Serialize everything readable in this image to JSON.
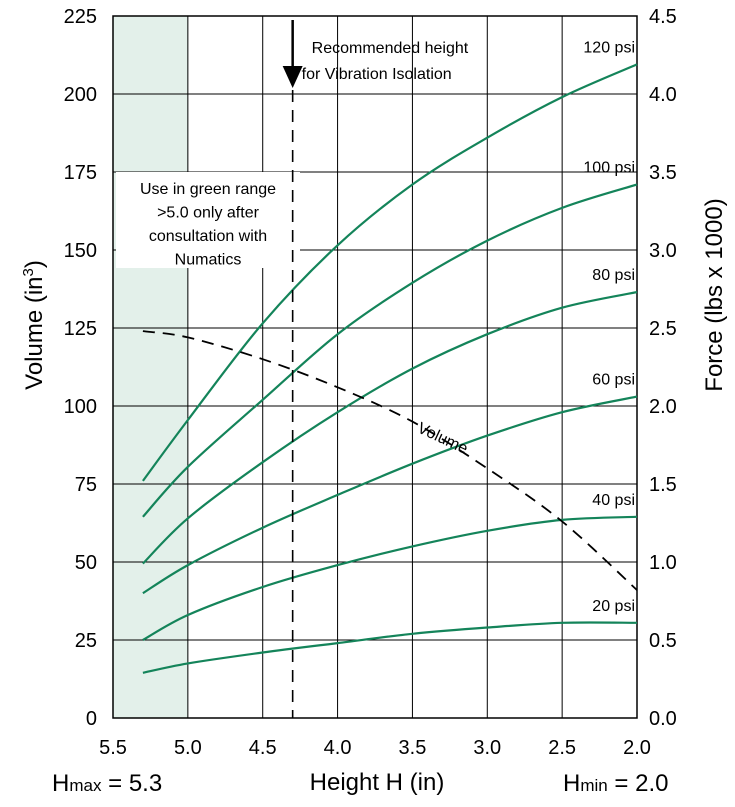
{
  "chart_data": {
    "type": "line",
    "x_axis": {
      "label": "Height H (in)",
      "reversed": true,
      "lim": [
        5.5,
        2.0
      ],
      "ticks": [
        "5.5",
        "5.0",
        "4.5",
        "4.0",
        "3.5",
        "3.0",
        "2.5",
        "2.0"
      ]
    },
    "y_left": {
      "label": "Volume (in",
      "label_sup": "3",
      "label_end": ")",
      "lim": [
        0,
        225
      ],
      "ticks": [
        "0",
        "25",
        "50",
        "75",
        "100",
        "125",
        "150",
        "175",
        "200",
        "225"
      ]
    },
    "y_right": {
      "label": "Force (lbs x 1000)",
      "lim": [
        0.0,
        4.5
      ],
      "ticks": [
        "0.0",
        "0.5",
        "1.0",
        "1.5",
        "2.0",
        "2.5",
        "3.0",
        "3.5",
        "4.0",
        "4.5"
      ]
    },
    "grid": true,
    "shaded_region": {
      "x": [
        5.5,
        5.0
      ],
      "color": "#e3f0ea"
    },
    "recommended_line": {
      "x": 4.3,
      "label_line1": "Recommended height",
      "label_line2": "for Vibration Isolation"
    },
    "note": {
      "lines": [
        "Use in green range",
        ">5.0 only after",
        "consultation with",
        "Numatics"
      ]
    },
    "force_series": [
      {
        "name": "120 psi",
        "x": [
          5.3,
          5.0,
          4.5,
          4.0,
          3.5,
          3.0,
          2.5,
          2.0
        ],
        "y": [
          1.52,
          1.91,
          2.53,
          3.03,
          3.42,
          3.72,
          3.98,
          4.19
        ]
      },
      {
        "name": "100 psi",
        "x": [
          5.3,
          5.0,
          4.5,
          4.0,
          3.5,
          3.0,
          2.5,
          2.0
        ],
        "y": [
          1.29,
          1.61,
          2.04,
          2.46,
          2.79,
          3.06,
          3.27,
          3.42
        ]
      },
      {
        "name": "80 psi",
        "x": [
          5.3,
          5.0,
          4.5,
          4.0,
          3.5,
          3.0,
          2.5,
          2.0
        ],
        "y": [
          0.99,
          1.28,
          1.64,
          1.96,
          2.24,
          2.46,
          2.63,
          2.73
        ]
      },
      {
        "name": "60 psi",
        "x": [
          5.3,
          5.0,
          4.5,
          4.0,
          3.5,
          3.0,
          2.5,
          2.0
        ],
        "y": [
          0.8,
          0.98,
          1.22,
          1.43,
          1.63,
          1.81,
          1.96,
          2.06
        ]
      },
      {
        "name": "40 psi",
        "x": [
          5.3,
          5.0,
          4.5,
          4.0,
          3.5,
          3.0,
          2.5,
          2.0
        ],
        "y": [
          0.5,
          0.66,
          0.84,
          0.98,
          1.1,
          1.2,
          1.27,
          1.29
        ]
      },
      {
        "name": "20 psi",
        "x": [
          5.3,
          5.0,
          4.5,
          4.0,
          3.5,
          3.0,
          2.5,
          2.0
        ],
        "y": [
          0.29,
          0.35,
          0.42,
          0.48,
          0.54,
          0.58,
          0.61,
          0.61
        ]
      }
    ],
    "volume_series": {
      "name": "Volume",
      "x": [
        5.3,
        5.0,
        4.5,
        4.0,
        3.5,
        3.0,
        2.5,
        2.0
      ],
      "y": [
        124,
        122,
        115,
        106,
        95,
        80,
        63,
        41
      ]
    },
    "colors": {
      "series": "#14845a",
      "volume": "#000000",
      "grid": "#000000"
    },
    "bottom_labels": {
      "hmax_h": "H",
      "hmax_sub": "max",
      "hmax_val": " = 5.3",
      "hmin_h": "H",
      "hmin_sub": "min",
      "hmin_val": " = 2.0"
    }
  }
}
